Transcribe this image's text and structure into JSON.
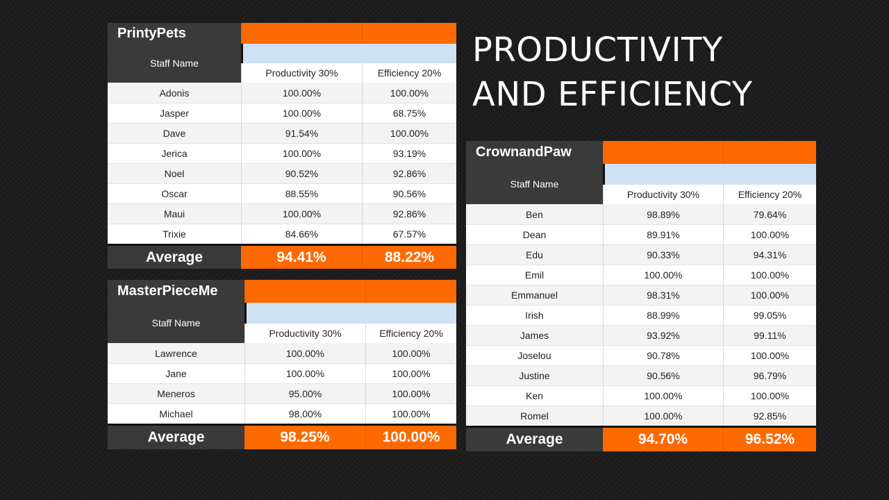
{
  "slide": {
    "title_line1": "PRODUCTIVITY",
    "title_line2": "AND EFFICIENCY"
  },
  "colors": {
    "accent_orange": "#ff6a00",
    "header_dark": "#3a3a3a",
    "header_blue": "#cfe2f3",
    "background": "#1a1a1a"
  },
  "tables": {
    "printypets": {
      "brand": "PrintyPets",
      "staff_header": "Staff Name",
      "col1": "Productivity 30%",
      "col2": "Efficiency 20%",
      "rows": [
        [
          "Adonis",
          "100.00%",
          "100.00%"
        ],
        [
          "Jasper",
          "100.00%",
          "68.75%"
        ],
        [
          "Dave",
          "91.54%",
          "100.00%"
        ],
        [
          "Jerica",
          "100.00%",
          "93.19%"
        ],
        [
          "Noel",
          "90.52%",
          "92.86%"
        ],
        [
          "Oscar",
          "88.55%",
          "90.56%"
        ],
        [
          "Maui",
          "100.00%",
          "92.86%"
        ],
        [
          "Trixie",
          "84.66%",
          "67.57%"
        ]
      ],
      "average_label": "Average",
      "average_productivity": "94.41%",
      "average_efficiency": "88.22%"
    },
    "masterpieceme": {
      "brand": "MasterPieceMe",
      "staff_header": "Staff Name",
      "col1": "Productivity 30%",
      "col2": "Efficiency 20%",
      "rows": [
        [
          "Lawrence",
          "100.00%",
          "100.00%"
        ],
        [
          "Jane",
          "100.00%",
          "100.00%"
        ],
        [
          "Meneros",
          "95.00%",
          "100.00%"
        ],
        [
          "Michael",
          "98.00%",
          "100.00%"
        ]
      ],
      "average_label": "Average",
      "average_productivity": "98.25%",
      "average_efficiency": "100.00%"
    },
    "crownandpaw": {
      "brand": "CrownandPaw",
      "staff_header": "Staff Name",
      "col1": "Productivity 30%",
      "col2": "Efficiency 20%",
      "rows": [
        [
          "Ben",
          "98.89%",
          "79.64%"
        ],
        [
          "Dean",
          "89.91%",
          "100.00%"
        ],
        [
          "Edu",
          "90.33%",
          "94.31%"
        ],
        [
          "Emil",
          "100.00%",
          "100.00%"
        ],
        [
          "Emmanuel",
          "98.31%",
          "100.00%"
        ],
        [
          "Irish",
          "88.99%",
          "99.05%"
        ],
        [
          "James",
          "93.92%",
          "99.11%"
        ],
        [
          "Joselou",
          "90.78%",
          "100.00%"
        ],
        [
          "Justine",
          "90.56%",
          "96.79%"
        ],
        [
          "Ken",
          "100.00%",
          "100.00%"
        ],
        [
          "Romel",
          "100.00%",
          "92.85%"
        ]
      ],
      "average_label": "Average",
      "average_productivity": "94.70%",
      "average_efficiency": "96.52%"
    }
  }
}
